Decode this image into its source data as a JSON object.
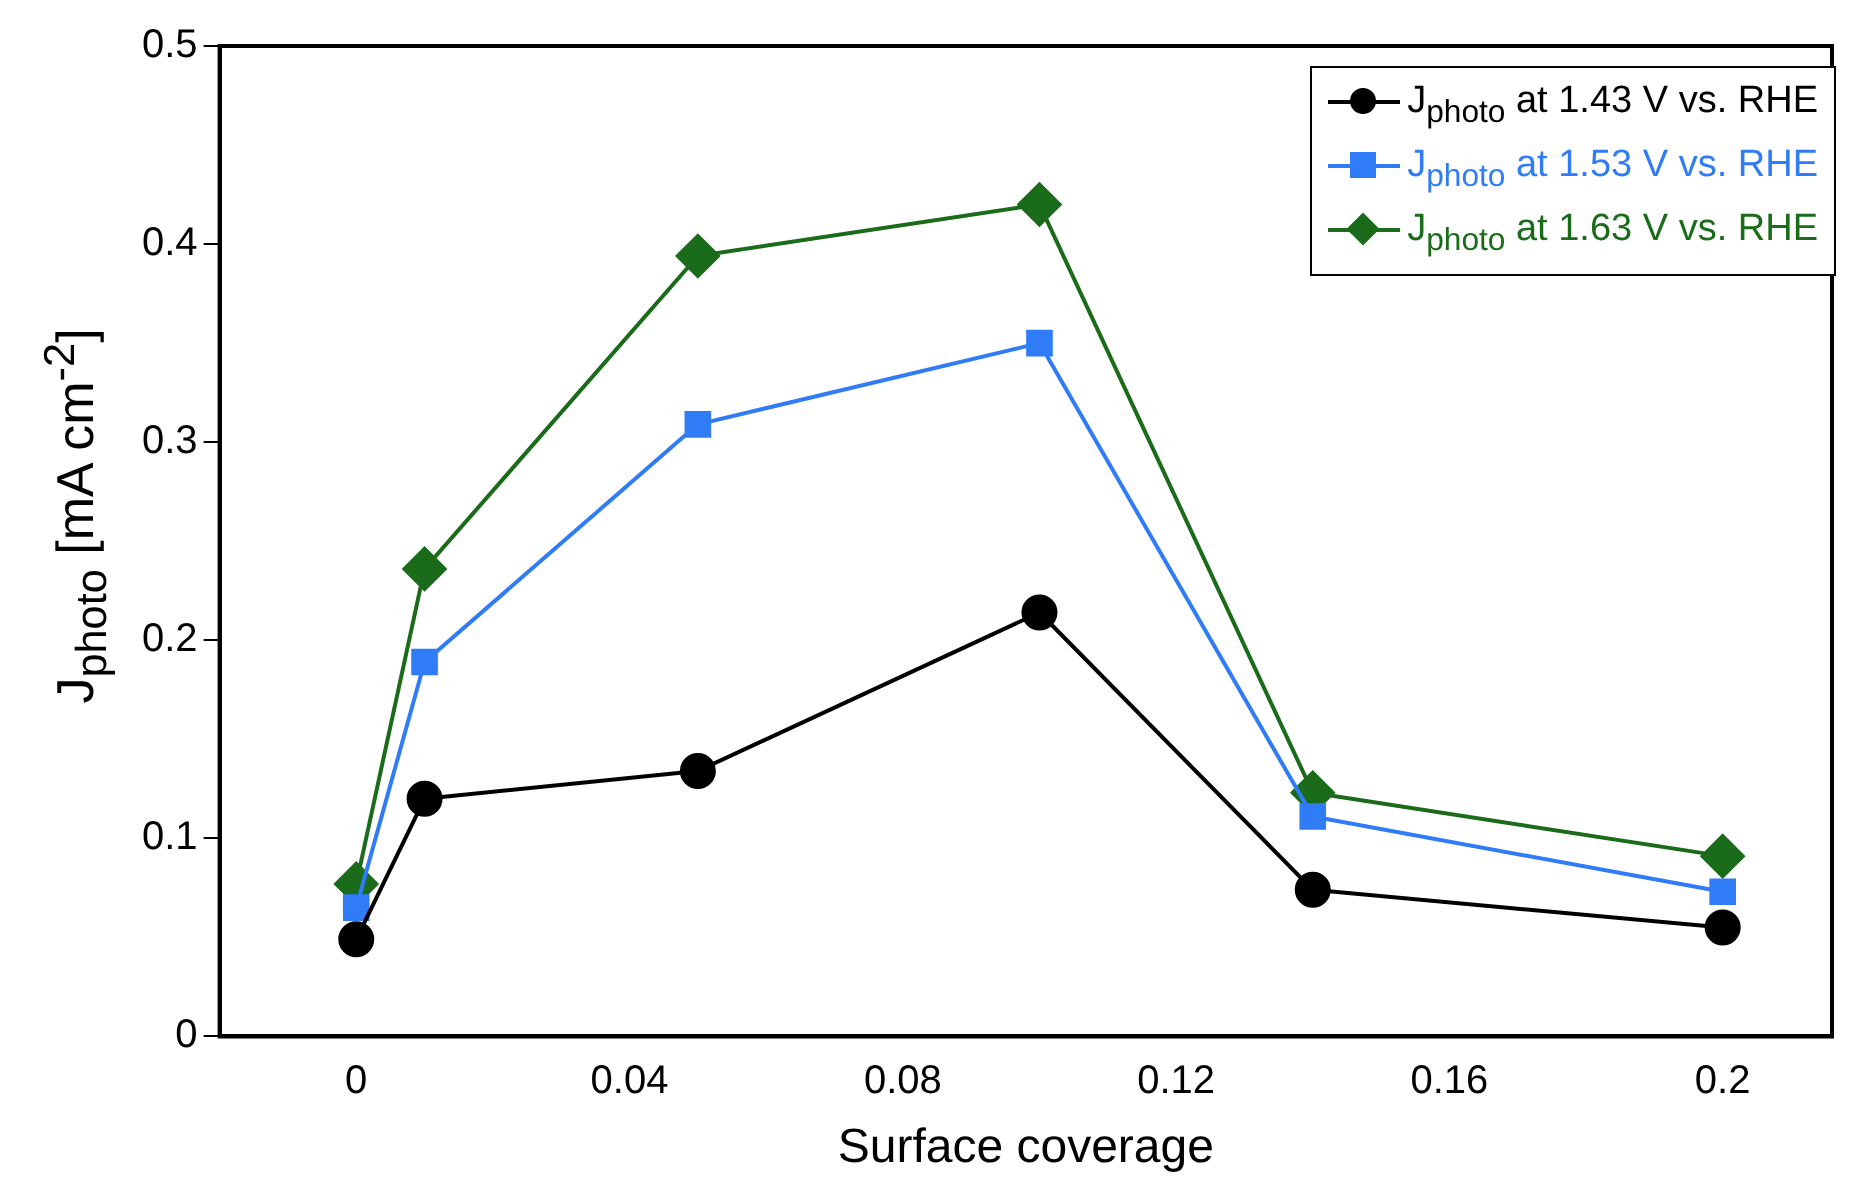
{
  "chart_data": {
    "type": "line",
    "xlabel": "Surface coverage",
    "ylabel": "J$_{photo}$ [mA cm$^{-2}$]",
    "x": [
      0,
      0.01,
      0.05,
      0.1,
      0.14,
      0.2
    ],
    "series": [
      {
        "name": "J$_{photo}$ at 1.43 V vs. RHE",
        "color": "#000000",
        "marker": "circle",
        "values": [
          0.049,
          0.12,
          0.134,
          0.214,
          0.074,
          0.055
        ]
      },
      {
        "name": "J$_{photo}$ at 1.53 V vs. RHE",
        "color": "#2f7cf6",
        "marker": "square",
        "values": [
          0.065,
          0.189,
          0.309,
          0.35,
          0.111,
          0.073
        ]
      },
      {
        "name": "J$_{photo}$ at 1.63 V vs. RHE",
        "color": "#1a6b1a",
        "marker": "diamond",
        "values": [
          0.077,
          0.236,
          0.394,
          0.42,
          0.123,
          0.091
        ]
      }
    ],
    "xlim": [
      -0.02,
      0.216
    ],
    "xticks": [
      0,
      0.04,
      0.08,
      0.12,
      0.16,
      0.2
    ],
    "ylim": [
      0,
      0.5
    ],
    "yticks": [
      0,
      0.1,
      0.2,
      0.3,
      0.4,
      0.5
    ],
    "grid": false,
    "legend": "top right",
    "line_style": "solid"
  }
}
